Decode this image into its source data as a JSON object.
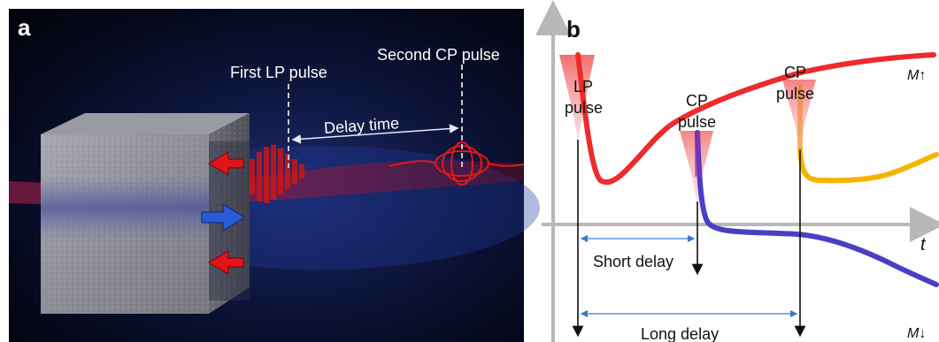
{
  "panel_a": {
    "label": "a",
    "first_pulse_label": "First LP pulse",
    "second_pulse_label": "Second CP pulse",
    "delay_label": "Delay time"
  },
  "panel_b": {
    "label": "b",
    "axis_t_label": "t",
    "m_up_label": "M↑",
    "m_down_label": "M↓",
    "lp_pulse_line1": "LP",
    "lp_pulse_line2": "pulse",
    "cp_pulse1_line1": "CP",
    "cp_pulse1_line2": "pulse",
    "cp_pulse2_line1": "CP",
    "cp_pulse2_line2": "pulse",
    "short_delay_label": "Short delay",
    "long_delay_label": "Long delay"
  },
  "colors": {
    "m_up_curve": "#ee2a2a",
    "m_down_curve": "#4a3fc4",
    "switched_curve": "#f5b400",
    "pulse_red": "#e23030",
    "arrow_blue": "#3a7ac8",
    "axis_gray": "#b8b8b8"
  }
}
